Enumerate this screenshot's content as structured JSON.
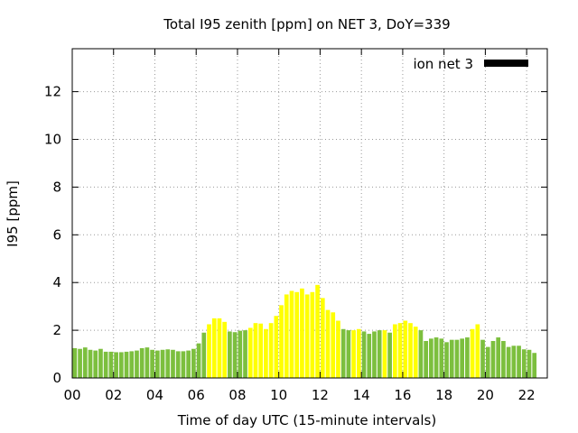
{
  "chart_data": {
    "type": "bar",
    "title": "Total I95 zenith [ppm] on NET 3, DoY=339",
    "xlabel": "Time of day UTC (15-minute intervals)",
    "ylabel": "I95 [ppm]",
    "xlim": [
      0,
      23
    ],
    "ylim": [
      0,
      13.8
    ],
    "x_ticks": [
      "00",
      "02",
      "04",
      "06",
      "08",
      "10",
      "12",
      "14",
      "16",
      "18",
      "20",
      "22"
    ],
    "y_ticks": [
      "0",
      "2",
      "4",
      "6",
      "8",
      "10",
      "12"
    ],
    "grid": true,
    "legend_position": "top-right",
    "series": [
      {
        "name": "ion net 3",
        "legend_color": "#000000",
        "interval_hours": 0.25,
        "values": [
          1.25,
          1.22,
          1.28,
          1.18,
          1.15,
          1.22,
          1.1,
          1.1,
          1.08,
          1.08,
          1.1,
          1.12,
          1.15,
          1.25,
          1.28,
          1.18,
          1.15,
          1.18,
          1.2,
          1.18,
          1.12,
          1.12,
          1.15,
          1.22,
          1.45,
          1.9,
          2.25,
          2.5,
          2.5,
          2.35,
          1.95,
          1.92,
          1.98,
          2.0,
          2.1,
          2.3,
          2.28,
          2.05,
          2.3,
          2.6,
          3.05,
          3.5,
          3.65,
          3.6,
          3.75,
          3.5,
          3.6,
          3.9,
          3.35,
          2.85,
          2.75,
          2.4,
          2.05,
          2.0,
          2.0,
          2.05,
          1.95,
          1.85,
          1.95,
          2.0,
          2.0,
          1.9,
          2.25,
          2.3,
          2.4,
          2.3,
          2.15,
          2.0,
          1.55,
          1.65,
          1.7,
          1.65,
          1.5,
          1.6,
          1.6,
          1.65,
          1.7,
          2.05,
          2.25,
          1.6,
          1.3,
          1.55,
          1.7,
          1.55,
          1.3,
          1.35,
          1.35,
          1.2,
          1.18,
          1.05
        ],
        "level_colors": {
          "low": "#7cbf3e",
          "moderate": "#ffff00"
        },
        "levels": [
          "low",
          "low",
          "low",
          "low",
          "low",
          "low",
          "low",
          "low",
          "low",
          "low",
          "low",
          "low",
          "low",
          "low",
          "low",
          "low",
          "low",
          "low",
          "low",
          "low",
          "low",
          "low",
          "low",
          "low",
          "low",
          "low",
          "moderate",
          "moderate",
          "moderate",
          "moderate",
          "low",
          "low",
          "low",
          "low",
          "moderate",
          "moderate",
          "moderate",
          "moderate",
          "moderate",
          "moderate",
          "moderate",
          "moderate",
          "moderate",
          "moderate",
          "moderate",
          "moderate",
          "moderate",
          "moderate",
          "moderate",
          "moderate",
          "moderate",
          "moderate",
          "low",
          "low",
          "moderate",
          "moderate",
          "low",
          "low",
          "low",
          "low",
          "moderate",
          "low",
          "moderate",
          "moderate",
          "moderate",
          "moderate",
          "moderate",
          "low",
          "low",
          "low",
          "low",
          "low",
          "low",
          "low",
          "low",
          "low",
          "low",
          "moderate",
          "moderate",
          "low",
          "low",
          "low",
          "low",
          "low",
          "low",
          "low",
          "low",
          "low",
          "low",
          "low"
        ]
      }
    ]
  }
}
